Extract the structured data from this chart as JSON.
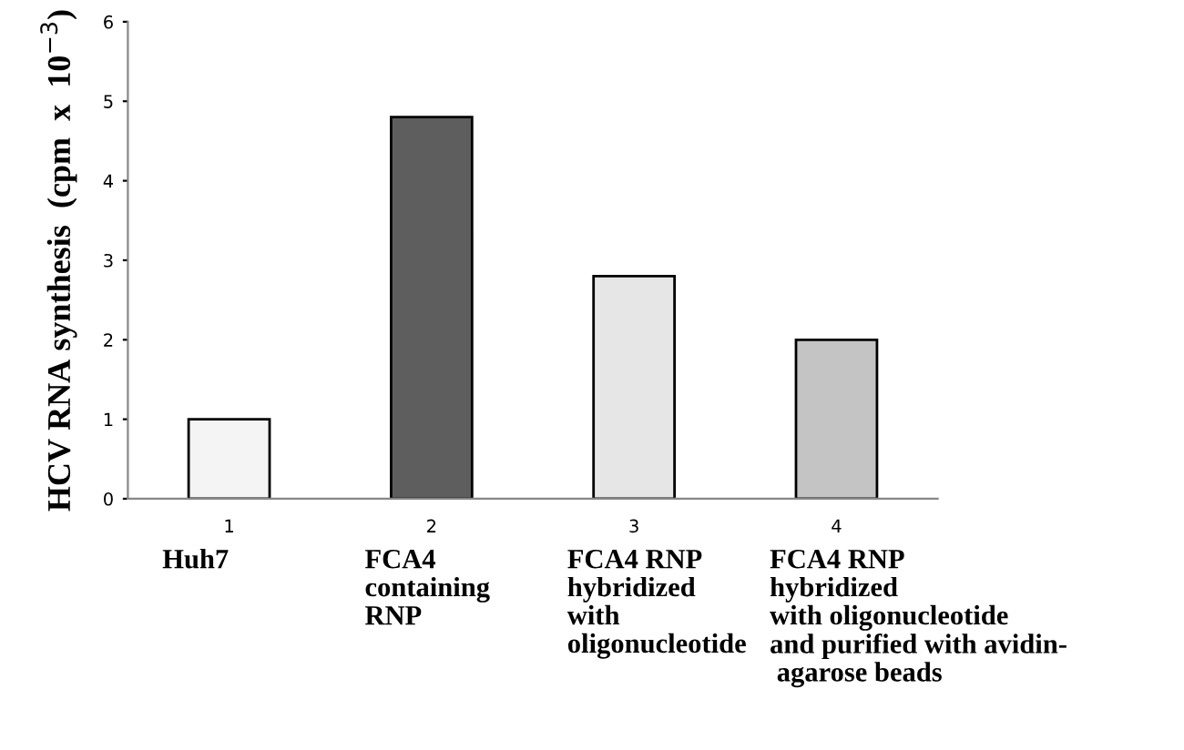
{
  "chart_data": {
    "type": "bar",
    "ylabel": "HCV RNA synthesis  (cpm  x  10$^{−3}$)",
    "categories": [
      "1",
      "2",
      "3",
      "4"
    ],
    "values": [
      1.0,
      4.8,
      2.8,
      2.0
    ],
    "colors": [
      "#f4f4f4",
      "#5e5e5e",
      "#e6e6e6",
      "#c4c4c4"
    ],
    "ylim": [
      0,
      6
    ],
    "yticks": [
      0,
      1,
      2,
      3,
      4,
      5,
      6
    ],
    "grid": false,
    "legend": false,
    "annotations": [
      "Huh7",
      "FCA4\ncontaining\nRNP",
      "FCA4 RNP\nhybridized\nwith\noligonucleotide",
      "FCA4 RNP\nhybridized\nwith oligonucleotide\nand purified with avidin-\n agarose beads"
    ]
  }
}
